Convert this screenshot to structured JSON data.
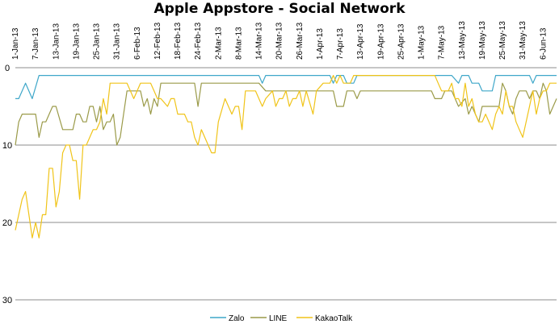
{
  "chart_data": {
    "type": "line",
    "title": "Apple Appstore - Social Network",
    "xlabel": "",
    "ylabel": "",
    "ylim": [
      0,
      30
    ],
    "y_reversed": true,
    "y_ticks": [
      0,
      10,
      20,
      30
    ],
    "grid": "horizontal",
    "legend_position": "bottom",
    "x_tick_labels": [
      "1-Jan-13",
      "7-Jan-13",
      "13-Jan-13",
      "19-Jan-13",
      "25-Jan-13",
      "31-Jan-13",
      "6-Feb-13",
      "12-Feb-13",
      "18-Feb-13",
      "24-Feb-13",
      "2-Mar-13",
      "8-Mar-13",
      "14-Mar-13",
      "20-Mar-13",
      "26-Mar-13",
      "1-Apr-13",
      "7-Apr-13",
      "13-Apr-13",
      "19-Apr-13",
      "25-Apr-13",
      "1-May-13",
      "7-May-13",
      "13-May-13",
      "19-May-13",
      "25-May-13",
      "31-May-13",
      "6-Jun-13"
    ],
    "x_range": [
      "2013-01-01",
      "2013-06-10"
    ],
    "series": [
      {
        "name": "Zalo",
        "color": "#3fa7c9",
        "points": [
          [
            "2013-01-01",
            4
          ],
          [
            "2013-01-02",
            4
          ],
          [
            "2013-01-04",
            2
          ],
          [
            "2013-01-06",
            4
          ],
          [
            "2013-01-08",
            1
          ],
          [
            "2013-02-10",
            1
          ],
          [
            "2013-03-14",
            1
          ],
          [
            "2013-03-15",
            2
          ],
          [
            "2013-03-16",
            1
          ],
          [
            "2013-04-04",
            1
          ],
          [
            "2013-04-05",
            2
          ],
          [
            "2013-04-06",
            1
          ],
          [
            "2013-04-08",
            1
          ],
          [
            "2013-04-09",
            2
          ],
          [
            "2013-04-11",
            2
          ],
          [
            "2013-04-12",
            1
          ],
          [
            "2013-05-10",
            1
          ],
          [
            "2013-05-12",
            2
          ],
          [
            "2013-05-13",
            1
          ],
          [
            "2013-05-15",
            1
          ],
          [
            "2013-05-16",
            2
          ],
          [
            "2013-05-18",
            2
          ],
          [
            "2013-05-19",
            3
          ],
          [
            "2013-05-22",
            3
          ],
          [
            "2013-05-23",
            1
          ],
          [
            "2013-06-02",
            1
          ],
          [
            "2013-06-03",
            2
          ],
          [
            "2013-06-04",
            1
          ],
          [
            "2013-06-10",
            1
          ]
        ]
      },
      {
        "name": "LINE",
        "color": "#9a9a48",
        "points": [
          [
            "2013-01-01",
            10
          ],
          [
            "2013-01-02",
            7
          ],
          [
            "2013-01-03",
            6
          ],
          [
            "2013-01-05",
            6
          ],
          [
            "2013-01-07",
            6
          ],
          [
            "2013-01-08",
            9
          ],
          [
            "2013-01-09",
            7
          ],
          [
            "2013-01-10",
            7
          ],
          [
            "2013-01-12",
            5
          ],
          [
            "2013-01-13",
            5
          ],
          [
            "2013-01-15",
            8
          ],
          [
            "2013-01-16",
            8
          ],
          [
            "2013-01-18",
            8
          ],
          [
            "2013-01-19",
            6
          ],
          [
            "2013-01-20",
            6
          ],
          [
            "2013-01-21",
            7
          ],
          [
            "2013-01-22",
            7
          ],
          [
            "2013-01-23",
            5
          ],
          [
            "2013-01-24",
            5
          ],
          [
            "2013-01-25",
            7
          ],
          [
            "2013-01-26",
            5
          ],
          [
            "2013-01-27",
            8
          ],
          [
            "2013-01-28",
            7
          ],
          [
            "2013-01-29",
            7
          ],
          [
            "2013-01-30",
            6
          ],
          [
            "2013-01-31",
            10
          ],
          [
            "2013-02-01",
            9
          ],
          [
            "2013-02-02",
            6
          ],
          [
            "2013-02-03",
            3
          ],
          [
            "2013-02-07",
            3
          ],
          [
            "2013-02-08",
            5
          ],
          [
            "2013-02-09",
            4
          ],
          [
            "2013-02-10",
            6
          ],
          [
            "2013-02-11",
            4
          ],
          [
            "2013-02-12",
            5
          ],
          [
            "2013-02-13",
            2
          ],
          [
            "2013-02-23",
            2
          ],
          [
            "2013-02-24",
            5
          ],
          [
            "2013-02-25",
            2
          ],
          [
            "2013-03-14",
            2
          ],
          [
            "2013-03-16",
            3
          ],
          [
            "2013-03-27",
            3
          ],
          [
            "2013-03-28",
            3
          ],
          [
            "2013-04-05",
            3
          ],
          [
            "2013-04-06",
            5
          ],
          [
            "2013-04-08",
            5
          ],
          [
            "2013-04-09",
            3
          ],
          [
            "2013-04-11",
            3
          ],
          [
            "2013-04-12",
            4
          ],
          [
            "2013-04-13",
            3
          ],
          [
            "2013-05-04",
            3
          ],
          [
            "2013-05-05",
            4
          ],
          [
            "2013-05-07",
            4
          ],
          [
            "2013-05-08",
            3
          ],
          [
            "2013-05-10",
            3
          ],
          [
            "2013-05-12",
            5
          ],
          [
            "2013-05-14",
            4
          ],
          [
            "2013-05-15",
            6
          ],
          [
            "2013-05-16",
            5
          ],
          [
            "2013-05-17",
            6
          ],
          [
            "2013-05-18",
            7
          ],
          [
            "2013-05-19",
            5
          ],
          [
            "2013-05-24",
            5
          ],
          [
            "2013-05-25",
            2
          ],
          [
            "2013-05-26",
            3
          ],
          [
            "2013-05-27",
            5
          ],
          [
            "2013-05-28",
            6
          ],
          [
            "2013-05-29",
            4
          ],
          [
            "2013-05-30",
            3
          ],
          [
            "2013-06-01",
            3
          ],
          [
            "2013-06-02",
            4
          ],
          [
            "2013-06-03",
            3
          ],
          [
            "2013-06-04",
            3
          ],
          [
            "2013-06-05",
            4
          ],
          [
            "2013-06-06",
            2
          ],
          [
            "2013-06-07",
            3
          ],
          [
            "2013-06-08",
            6
          ],
          [
            "2013-06-09",
            5
          ],
          [
            "2013-06-10",
            4
          ]
        ]
      },
      {
        "name": "KakaoTalk",
        "color": "#f0c419",
        "points": [
          [
            "2013-01-01",
            21
          ],
          [
            "2013-01-02",
            19
          ],
          [
            "2013-01-03",
            17
          ],
          [
            "2013-01-04",
            16
          ],
          [
            "2013-01-05",
            19
          ],
          [
            "2013-01-06",
            22
          ],
          [
            "2013-01-07",
            20
          ],
          [
            "2013-01-08",
            22
          ],
          [
            "2013-01-09",
            19
          ],
          [
            "2013-01-10",
            19
          ],
          [
            "2013-01-11",
            13
          ],
          [
            "2013-01-12",
            13
          ],
          [
            "2013-01-13",
            18
          ],
          [
            "2013-01-14",
            16
          ],
          [
            "2013-01-15",
            11
          ],
          [
            "2013-01-16",
            10
          ],
          [
            "2013-01-17",
            10
          ],
          [
            "2013-01-18",
            12
          ],
          [
            "2013-01-19",
            12
          ],
          [
            "2013-01-20",
            17
          ],
          [
            "2013-01-21",
            10
          ],
          [
            "2013-01-22",
            10
          ],
          [
            "2013-01-23",
            9
          ],
          [
            "2013-01-24",
            8
          ],
          [
            "2013-01-25",
            8
          ],
          [
            "2013-01-26",
            7
          ],
          [
            "2013-01-27",
            4
          ],
          [
            "2013-01-28",
            6
          ],
          [
            "2013-01-29",
            2
          ],
          [
            "2013-01-30",
            2
          ],
          [
            "2013-01-31",
            2
          ],
          [
            "2013-02-01",
            2
          ],
          [
            "2013-02-02",
            2
          ],
          [
            "2013-02-03",
            2
          ],
          [
            "2013-02-04",
            3
          ],
          [
            "2013-02-05",
            4
          ],
          [
            "2013-02-07",
            2
          ],
          [
            "2013-02-10",
            2
          ],
          [
            "2013-02-11",
            3
          ],
          [
            "2013-02-12",
            4
          ],
          [
            "2013-02-13",
            4
          ],
          [
            "2013-02-15",
            5
          ],
          [
            "2013-02-16",
            4
          ],
          [
            "2013-02-17",
            4
          ],
          [
            "2013-02-18",
            6
          ],
          [
            "2013-02-20",
            6
          ],
          [
            "2013-02-21",
            7
          ],
          [
            "2013-02-22",
            7
          ],
          [
            "2013-02-23",
            9
          ],
          [
            "2013-02-24",
            10
          ],
          [
            "2013-02-25",
            8
          ],
          [
            "2013-02-26",
            9
          ],
          [
            "2013-02-27",
            10
          ],
          [
            "2013-02-28",
            11
          ],
          [
            "2013-03-01",
            11
          ],
          [
            "2013-03-02",
            7
          ],
          [
            "2013-03-04",
            4
          ],
          [
            "2013-03-06",
            6
          ],
          [
            "2013-03-07",
            5
          ],
          [
            "2013-03-08",
            5
          ],
          [
            "2013-03-09",
            8
          ],
          [
            "2013-03-10",
            3
          ],
          [
            "2013-03-13",
            3
          ],
          [
            "2013-03-15",
            5
          ],
          [
            "2013-03-16",
            4
          ],
          [
            "2013-03-18",
            3
          ],
          [
            "2013-03-19",
            5
          ],
          [
            "2013-03-20",
            4
          ],
          [
            "2013-03-21",
            4
          ],
          [
            "2013-03-22",
            3
          ],
          [
            "2013-03-23",
            5
          ],
          [
            "2013-03-24",
            4
          ],
          [
            "2013-03-25",
            4
          ],
          [
            "2013-03-26",
            3
          ],
          [
            "2013-03-27",
            5
          ],
          [
            "2013-03-28",
            3
          ],
          [
            "2013-03-30",
            6
          ],
          [
            "2013-03-31",
            3
          ],
          [
            "2013-04-02",
            2
          ],
          [
            "2013-04-04",
            2
          ],
          [
            "2013-04-05",
            1
          ],
          [
            "2013-04-06",
            2
          ],
          [
            "2013-04-07",
            1
          ],
          [
            "2013-04-08",
            2
          ],
          [
            "2013-04-10",
            2
          ],
          [
            "2013-04-11",
            1
          ],
          [
            "2013-05-05",
            1
          ],
          [
            "2013-05-06",
            2
          ],
          [
            "2013-05-07",
            3
          ],
          [
            "2013-05-09",
            3
          ],
          [
            "2013-05-10",
            2
          ],
          [
            "2013-05-11",
            4
          ],
          [
            "2013-05-12",
            4
          ],
          [
            "2013-05-13",
            5
          ],
          [
            "2013-05-14",
            2
          ],
          [
            "2013-05-15",
            5
          ],
          [
            "2013-05-16",
            4
          ],
          [
            "2013-05-17",
            6
          ],
          [
            "2013-05-18",
            7
          ],
          [
            "2013-05-19",
            7
          ],
          [
            "2013-05-20",
            6
          ],
          [
            "2013-05-21",
            7
          ],
          [
            "2013-05-22",
            8
          ],
          [
            "2013-05-23",
            6
          ],
          [
            "2013-05-24",
            5
          ],
          [
            "2013-05-25",
            6
          ],
          [
            "2013-05-26",
            3
          ],
          [
            "2013-05-27",
            5
          ],
          [
            "2013-05-28",
            5
          ],
          [
            "2013-05-29",
            7
          ],
          [
            "2013-05-30",
            8
          ],
          [
            "2013-05-31",
            9
          ],
          [
            "2013-06-01",
            7
          ],
          [
            "2013-06-02",
            5
          ],
          [
            "2013-06-03",
            3
          ],
          [
            "2013-06-04",
            6
          ],
          [
            "2013-06-05",
            4
          ],
          [
            "2013-06-06",
            3
          ],
          [
            "2013-06-07",
            3
          ],
          [
            "2013-06-08",
            2
          ],
          [
            "2013-06-09",
            2
          ],
          [
            "2013-06-10",
            2
          ]
        ]
      }
    ]
  }
}
